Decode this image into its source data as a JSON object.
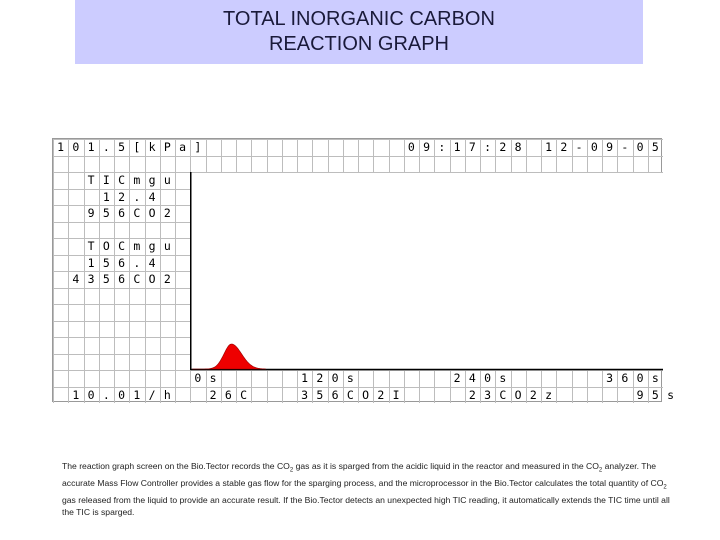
{
  "title": {
    "line1": "TOTAL INORGANIC CARBON",
    "line2": "REACTION GRAPH"
  },
  "screen": {
    "columns": 40,
    "rows": 16,
    "rows_text": [
      {
        "row": 0,
        "col": 0,
        "text": "101.5[kPa]"
      },
      {
        "row": 0,
        "col": 23,
        "text": "09:17:28"
      },
      {
        "row": 0,
        "col": 32,
        "text": "12-09-05"
      },
      {
        "row": 2,
        "col": 2,
        "text": "TICmgu"
      },
      {
        "row": 3,
        "col": 3,
        "text": "12.4"
      },
      {
        "row": 4,
        "col": 2,
        "text": "956CO2"
      },
      {
        "row": 6,
        "col": 2,
        "text": "TOCmgu"
      },
      {
        "row": 7,
        "col": 2,
        "text": "156.4"
      },
      {
        "row": 8,
        "col": 1,
        "text": "4356CO2"
      },
      {
        "row": 14,
        "col": 9,
        "text": "0s"
      },
      {
        "row": 14,
        "col": 16,
        "text": "120s"
      },
      {
        "row": 14,
        "col": 26,
        "text": "240s"
      },
      {
        "row": 14,
        "col": 36,
        "text": "360s"
      },
      {
        "row": 15,
        "col": 1,
        "text": "10.01/h"
      },
      {
        "row": 15,
        "col": 10,
        "text": "26C"
      },
      {
        "row": 15,
        "col": 16,
        "text": "356CO2I"
      },
      {
        "row": 15,
        "col": 27,
        "text": "23CO2z"
      },
      {
        "row": 15,
        "col": 38,
        "text": "95s"
      }
    ],
    "peak_color": "#ee0000",
    "peak_time_s": 36
  },
  "caption": {
    "part1": "The reaction graph screen on the Bio.Tector records the CO",
    "sub1": "2",
    "part2": " gas as it is sparged from the acidic liquid in the reactor and measured in the CO",
    "sub2": "2",
    "part3": " analyzer. The accurate Mass Flow Controller provides a stable gas flow for the sparging process, and the microprocessor in the Bio.Tector calculates the total quantity of CO",
    "sub3": "2",
    "part4": " gas released from the liquid to provide an accurate result. If the Bio.Tector detects an unexpected high TIC reading, it automatically extends the TIC time until all the TIC is sparged."
  }
}
